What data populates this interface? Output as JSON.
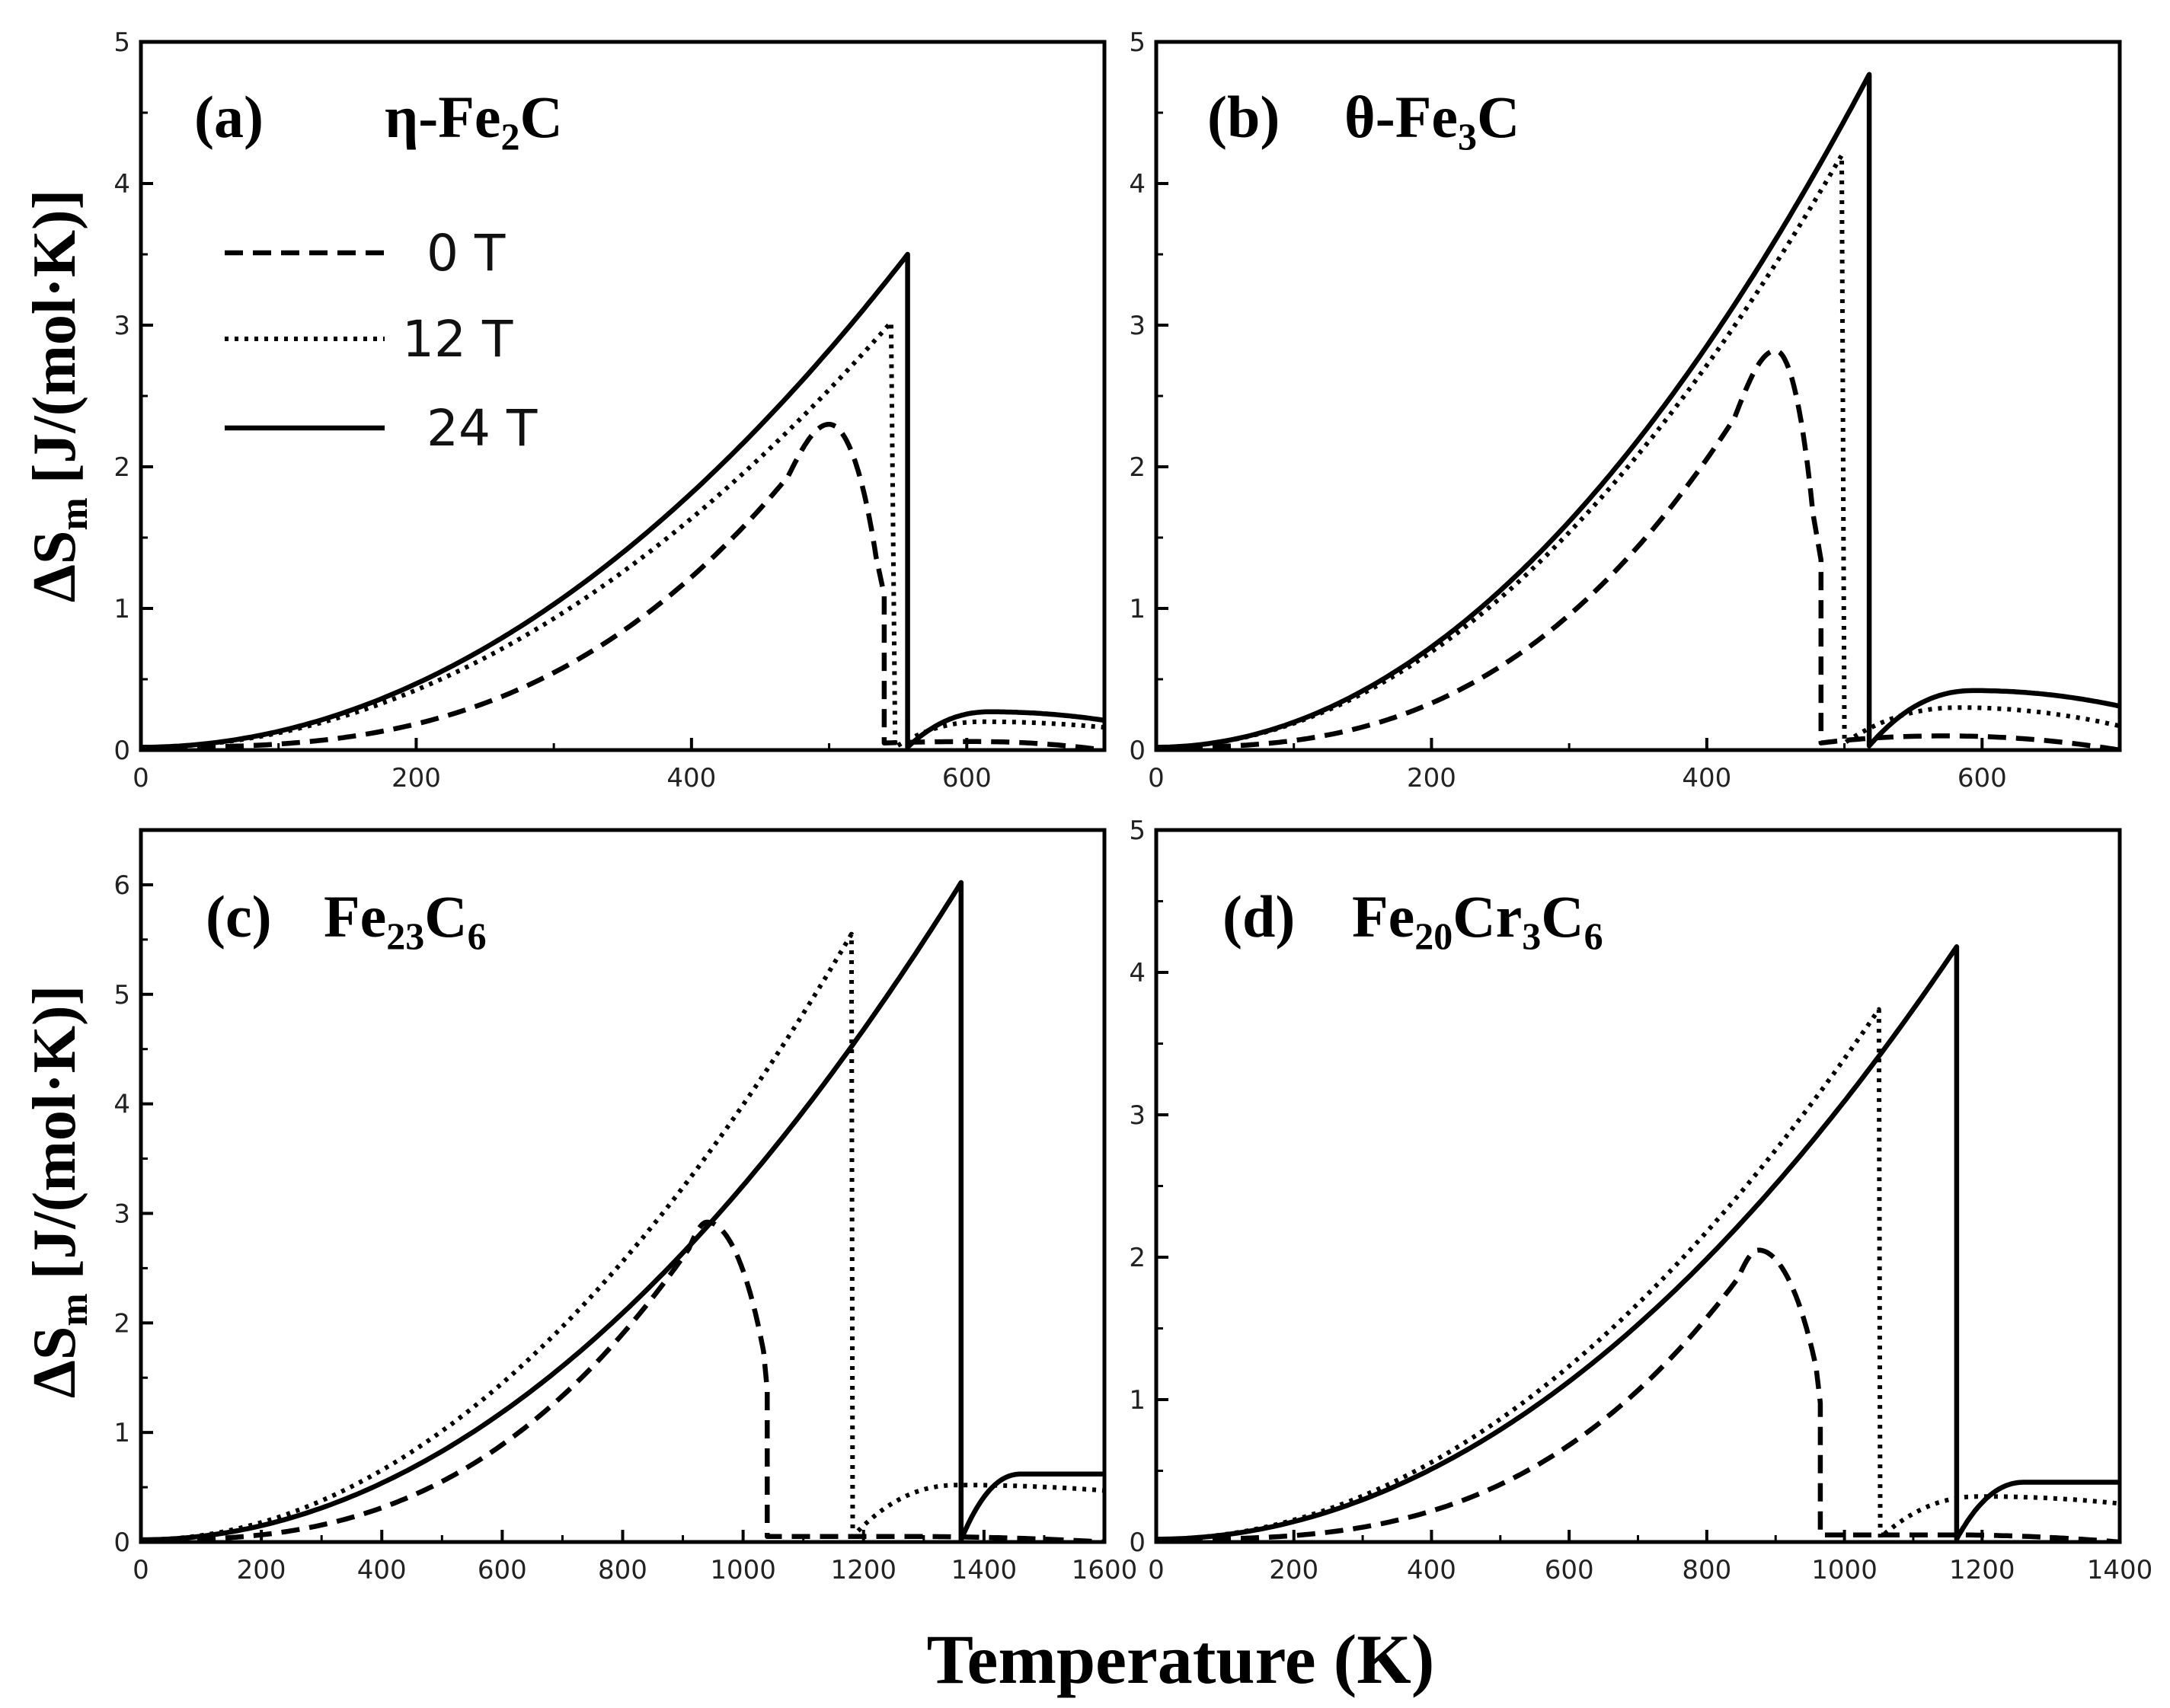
{
  "figure": {
    "xlabel": "Temperature (K)",
    "ylabel_main": "ΔS",
    "ylabel_sub": "m",
    "ylabel_unit": "[J/(mol·K)]"
  },
  "legend": [
    {
      "name": "0 T",
      "style": "dashed"
    },
    {
      "name": "12 T",
      "style": "dotted"
    },
    {
      "name": "24 T",
      "style": "solid"
    }
  ],
  "chart_data": [
    {
      "id": "a",
      "type": "line",
      "label": "(a)",
      "compound": {
        "main": "η-Fe",
        "sub1": "2",
        "mid": "C",
        "sub2": "",
        "end": ""
      },
      "xlim": [
        0,
        700
      ],
      "ylim": [
        0,
        5
      ],
      "xticks": [
        0,
        200,
        400,
        600
      ],
      "yticks": [
        0,
        1,
        2,
        3,
        4,
        5
      ],
      "xlabel": "Temperature (K)",
      "ylabel": "ΔSm [J/(mol·K)]",
      "series": [
        {
          "name": "0 T",
          "peak": {
            "T": 500,
            "dS": 2.3
          },
          "drop": {
            "T": 540,
            "dS": 0.05
          },
          "tail_max": 0.06,
          "tail_end": 0.0
        },
        {
          "name": "12 T",
          "peak": {
            "T": 545,
            "dS": 3.02
          },
          "drop": {
            "T": 548,
            "dS": 0.02
          },
          "tail_max": 0.2,
          "tail_end": 0.16
        },
        {
          "name": "24 T",
          "peak": {
            "T": 557,
            "dS": 3.5
          },
          "drop": {
            "T": 557,
            "dS": 0.02
          },
          "tail_max": 0.27,
          "tail_end": 0.21
        }
      ]
    },
    {
      "id": "b",
      "type": "line",
      "label": "(b)",
      "compound": {
        "main": "θ-Fe",
        "sub1": "3",
        "mid": "C",
        "sub2": "",
        "end": ""
      },
      "xlim": [
        0,
        700
      ],
      "ylim": [
        0,
        5
      ],
      "xticks": [
        0,
        200,
        400,
        600
      ],
      "yticks": [
        0,
        1,
        2,
        3,
        4,
        5
      ],
      "xlabel": "Temperature (K)",
      "ylabel": "ΔSm [J/(mol·K)]",
      "series": [
        {
          "name": "0 T",
          "peak": {
            "T": 450,
            "dS": 2.82
          },
          "drop": {
            "T": 483,
            "dS": 0.05
          },
          "tail_max": 0.1,
          "tail_end": 0.0
        },
        {
          "name": "12 T",
          "peak": {
            "T": 498,
            "dS": 4.2
          },
          "drop": {
            "T": 500,
            "dS": 0.05
          },
          "tail_max": 0.3,
          "tail_end": 0.17
        },
        {
          "name": "24 T",
          "peak": {
            "T": 518,
            "dS": 4.77
          },
          "drop": {
            "T": 518,
            "dS": 0.03
          },
          "tail_max": 0.42,
          "tail_end": 0.31
        }
      ]
    },
    {
      "id": "c",
      "type": "line",
      "label": "(c)",
      "compound": {
        "main": "Fe",
        "sub1": "23",
        "mid": "C",
        "sub2": "6",
        "end": ""
      },
      "xlim": [
        0,
        1600
      ],
      "ylim": [
        0,
        6.5
      ],
      "xticks": [
        0,
        200,
        400,
        600,
        800,
        1000,
        1200,
        1400,
        1600
      ],
      "yticks": [
        0,
        1,
        2,
        3,
        4,
        5,
        6
      ],
      "xlabel": "Temperature (K)",
      "ylabel": "ΔSm [J/(mol·K)]",
      "series": [
        {
          "name": "0 T",
          "peak": {
            "T": 940,
            "dS": 2.92
          },
          "drop": {
            "T": 1040,
            "dS": 0.05
          },
          "tail_max": 0.05,
          "tail_end": 0.0
        },
        {
          "name": "12 T",
          "peak": {
            "T": 1180,
            "dS": 5.55
          },
          "drop": {
            "T": 1182,
            "dS": 0.05
          },
          "tail_max": 0.52,
          "tail_end": 0.47
        },
        {
          "name": "24 T",
          "peak": {
            "T": 1362,
            "dS": 6.02
          },
          "drop": {
            "T": 1362,
            "dS": 0.02
          },
          "tail_max": 0.62,
          "tail_end": 0.62
        }
      ]
    },
    {
      "id": "d",
      "type": "line",
      "label": "(d)",
      "compound": {
        "main": "Fe",
        "sub1": "20",
        "mid": "Cr",
        "sub2": "3",
        "end": "C6"
      },
      "xlim": [
        0,
        1400
      ],
      "ylim": [
        0,
        5
      ],
      "xticks": [
        0,
        200,
        400,
        600,
        800,
        1000,
        1200,
        1400
      ],
      "yticks": [
        0,
        1,
        2,
        3,
        4,
        5
      ],
      "xlabel": "Temperature (K)",
      "ylabel": "ΔSm [J/(mol·K)]",
      "series": [
        {
          "name": "0 T",
          "peak": {
            "T": 875,
            "dS": 2.05
          },
          "drop": {
            "T": 965,
            "dS": 0.05
          },
          "tail_max": 0.05,
          "tail_end": 0.0
        },
        {
          "name": "12 T",
          "peak": {
            "T": 1050,
            "dS": 3.74
          },
          "drop": {
            "T": 1052,
            "dS": 0.03
          },
          "tail_max": 0.32,
          "tail_end": 0.27
        },
        {
          "name": "24 T",
          "peak": {
            "T": 1163,
            "dS": 4.18
          },
          "drop": {
            "T": 1163,
            "dS": 0.02
          },
          "tail_max": 0.42,
          "tail_end": 0.42
        }
      ]
    }
  ]
}
